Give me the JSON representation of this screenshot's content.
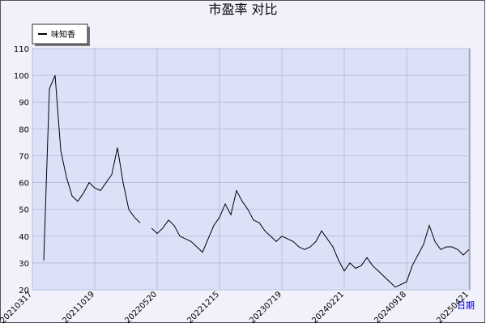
{
  "chart_data": {
    "type": "line",
    "title": "市盈率  对比",
    "x_label": "日期",
    "categories": [
      "20210317",
      null,
      null,
      null,
      null,
      null,
      null,
      null,
      null,
      null,
      null,
      "20211019",
      null,
      null,
      null,
      null,
      null,
      null,
      null,
      null,
      null,
      null,
      "20220520",
      null,
      null,
      null,
      null,
      null,
      null,
      null,
      null,
      null,
      null,
      "20221215",
      null,
      null,
      null,
      null,
      null,
      null,
      null,
      null,
      null,
      null,
      "20230719",
      null,
      null,
      null,
      null,
      null,
      null,
      null,
      null,
      null,
      null,
      "20240221",
      null,
      null,
      null,
      null,
      null,
      null,
      null,
      null,
      null,
      null,
      "20240918",
      null,
      null,
      null,
      null,
      null,
      null,
      null,
      null,
      null,
      null,
      "20250421"
    ],
    "series": [
      {
        "name": "味知香",
        "color": "#000000",
        "values": [
          null,
          null,
          31,
          95,
          100,
          72,
          62,
          55,
          53,
          56,
          60,
          58,
          57,
          60,
          63,
          73,
          60,
          50,
          47,
          45,
          null,
          43,
          41,
          43,
          46,
          44,
          40,
          39,
          38,
          36,
          34,
          39,
          44,
          47,
          52,
          48,
          57,
          53,
          50,
          46,
          45,
          42,
          40,
          38,
          40,
          39,
          38,
          36,
          35,
          36,
          38,
          42,
          39,
          36,
          31,
          27,
          30,
          28,
          29,
          32,
          29,
          27,
          25,
          23,
          21,
          22,
          23,
          29,
          33,
          37,
          44,
          38,
          35,
          36,
          36,
          35,
          33,
          35
        ]
      }
    ],
    "ylim": [
      20,
      110
    ],
    "yticks": [
      20,
      30,
      40,
      50,
      60,
      70,
      80,
      90,
      100,
      110
    ],
    "grid": true,
    "legend": "top-left"
  }
}
